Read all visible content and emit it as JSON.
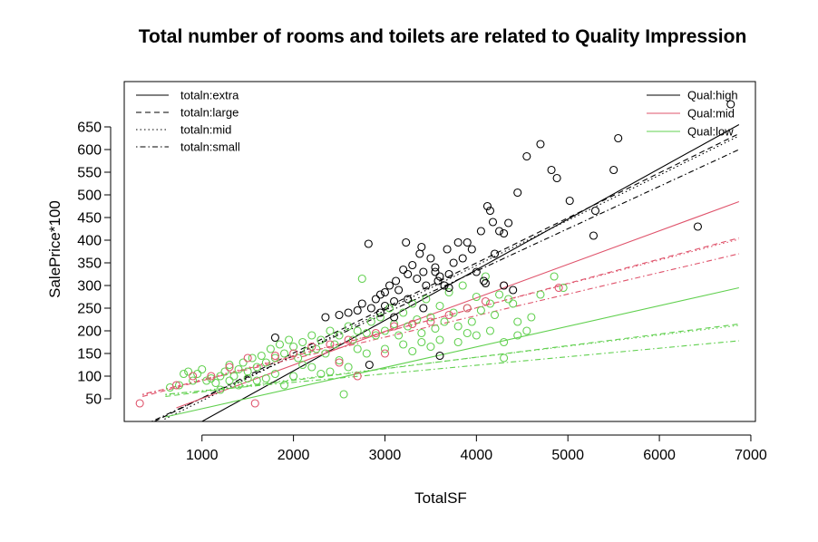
{
  "chart_data": {
    "type": "scatter",
    "title": "Total number of rooms and toilets are related to Quality Impression",
    "xlabel": "TotalSF",
    "ylabel": "SalePrice*100",
    "xlim": [
      150,
      7050
    ],
    "ylim": [
      0,
      750
    ],
    "xticks": [
      1000,
      2000,
      3000,
      4000,
      5000,
      6000,
      7000
    ],
    "yticks": [
      50,
      100,
      150,
      200,
      250,
      300,
      350,
      400,
      450,
      500,
      550,
      600,
      650
    ],
    "colors": {
      "high": "#000000",
      "mid": "#DF536B",
      "low": "#61D04F"
    },
    "legend_linetypes": {
      "position": "top-left",
      "entries": [
        {
          "label": "totaln:extra",
          "dash": "solid"
        },
        {
          "label": "totaln:large",
          "dash": "dashed"
        },
        {
          "label": "totaln:mid",
          "dash": "dotted"
        },
        {
          "label": "totaln:small",
          "dash": "dotdash"
        }
      ]
    },
    "legend_colors": {
      "position": "top-right",
      "entries": [
        {
          "label": "Qual:high",
          "color": "#000000"
        },
        {
          "label": "Qual:mid",
          "color": "#DF536B"
        },
        {
          "label": "Qual:low",
          "color": "#61D04F"
        }
      ]
    },
    "lines": [
      {
        "qual": "high",
        "totaln": "extra",
        "x": [
          1000,
          6870
        ],
        "y": [
          0,
          655
        ]
      },
      {
        "qual": "high",
        "totaln": "large",
        "x": [
          480,
          6870
        ],
        "y": [
          0,
          635
        ]
      },
      {
        "qual": "high",
        "totaln": "mid",
        "x": [
          590,
          6870
        ],
        "y": [
          5,
          630
        ]
      },
      {
        "qual": "high",
        "totaln": "small",
        "x": [
          450,
          6870
        ],
        "y": [
          0,
          600
        ]
      },
      {
        "qual": "mid",
        "totaln": "extra",
        "x": [
          720,
          6870
        ],
        "y": [
          30,
          485
        ]
      },
      {
        "qual": "mid",
        "totaln": "large",
        "x": [
          350,
          6870
        ],
        "y": [
          55,
          405
        ]
      },
      {
        "qual": "mid",
        "totaln": "mid",
        "x": [
          350,
          6870
        ],
        "y": [
          58,
          402
        ]
      },
      {
        "qual": "mid",
        "totaln": "small",
        "x": [
          350,
          6870
        ],
        "y": [
          60,
          370
        ]
      },
      {
        "qual": "low",
        "totaln": "extra",
        "x": [
          600,
          6870
        ],
        "y": [
          10,
          295
        ]
      },
      {
        "qual": "low",
        "totaln": "large",
        "x": [
          600,
          6870
        ],
        "y": [
          55,
          215
        ]
      },
      {
        "qual": "low",
        "totaln": "mid",
        "x": [
          600,
          6870
        ],
        "y": [
          58,
          212
        ]
      },
      {
        "qual": "low",
        "totaln": "small",
        "x": [
          600,
          6870
        ],
        "y": [
          60,
          178
        ]
      }
    ],
    "points_high": [
      [
        1800,
        185
      ],
      [
        2350,
        230
      ],
      [
        2500,
        235
      ],
      [
        2600,
        240
      ],
      [
        2700,
        245
      ],
      [
        2750,
        260
      ],
      [
        2820,
        392
      ],
      [
        2850,
        250
      ],
      [
        2900,
        270
      ],
      [
        2950,
        280
      ],
      [
        3000,
        285
      ],
      [
        3000,
        255
      ],
      [
        3050,
        300
      ],
      [
        3100,
        265
      ],
      [
        3120,
        310
      ],
      [
        3150,
        290
      ],
      [
        3200,
        335
      ],
      [
        3230,
        395
      ],
      [
        3250,
        325
      ],
      [
        3300,
        345
      ],
      [
        3350,
        315
      ],
      [
        3380,
        370
      ],
      [
        3400,
        385
      ],
      [
        3420,
        330
      ],
      [
        3450,
        300
      ],
      [
        3500,
        360
      ],
      [
        3550,
        340
      ],
      [
        3580,
        310
      ],
      [
        3600,
        320
      ],
      [
        3650,
        300
      ],
      [
        3680,
        380
      ],
      [
        3700,
        325
      ],
      [
        3750,
        350
      ],
      [
        3800,
        395
      ],
      [
        3850,
        360
      ],
      [
        3900,
        395
      ],
      [
        3950,
        380
      ],
      [
        4000,
        330
      ],
      [
        4050,
        420
      ],
      [
        4100,
        305
      ],
      [
        4120,
        475
      ],
      [
        4150,
        465
      ],
      [
        4180,
        440
      ],
      [
        4200,
        370
      ],
      [
        4250,
        420
      ],
      [
        4300,
        415
      ],
      [
        4350,
        438
      ],
      [
        4450,
        505
      ],
      [
        4550,
        585
      ],
      [
        4700,
        612
      ],
      [
        4820,
        555
      ],
      [
        4880,
        537
      ],
      [
        5020,
        487
      ],
      [
        5280,
        410
      ],
      [
        5300,
        465
      ],
      [
        5500,
        555
      ],
      [
        5550,
        625
      ],
      [
        6420,
        430
      ],
      [
        6780,
        700
      ],
      [
        3600,
        145
      ],
      [
        2830,
        125
      ],
      [
        4080,
        310
      ],
      [
        3250,
        270
      ],
      [
        3550,
        330
      ],
      [
        3420,
        250
      ],
      [
        3700,
        295
      ],
      [
        3100,
        230
      ],
      [
        2950,
        240
      ],
      [
        4300,
        300
      ],
      [
        4400,
        290
      ]
    ],
    "points_mid": [
      [
        320,
        40
      ],
      [
        720,
        80
      ],
      [
        900,
        100
      ],
      [
        1100,
        100
      ],
      [
        1300,
        120
      ],
      [
        1500,
        140
      ],
      [
        1580,
        40
      ],
      [
        1800,
        145
      ],
      [
        2000,
        150
      ],
      [
        2200,
        165
      ],
      [
        2400,
        170
      ],
      [
        2600,
        180
      ],
      [
        2700,
        100
      ],
      [
        2900,
        195
      ],
      [
        3100,
        210
      ],
      [
        3300,
        215
      ],
      [
        3500,
        220
      ],
      [
        3700,
        235
      ],
      [
        3900,
        250
      ],
      [
        4100,
        265
      ],
      [
        4300,
        300
      ],
      [
        4900,
        295
      ],
      [
        3000,
        150
      ],
      [
        2500,
        130
      ]
    ],
    "points_low": [
      [
        650,
        75
      ],
      [
        750,
        80
      ],
      [
        800,
        105
      ],
      [
        850,
        110
      ],
      [
        900,
        90
      ],
      [
        950,
        105
      ],
      [
        1000,
        115
      ],
      [
        1050,
        90
      ],
      [
        1100,
        95
      ],
      [
        1150,
        85
      ],
      [
        1200,
        100
      ],
      [
        1250,
        110
      ],
      [
        1300,
        125
      ],
      [
        1350,
        100
      ],
      [
        1400,
        115
      ],
      [
        1450,
        130
      ],
      [
        1500,
        110
      ],
      [
        1550,
        140
      ],
      [
        1600,
        120
      ],
      [
        1650,
        145
      ],
      [
        1700,
        130
      ],
      [
        1750,
        160
      ],
      [
        1800,
        140
      ],
      [
        1850,
        170
      ],
      [
        1900,
        150
      ],
      [
        1950,
        180
      ],
      [
        2000,
        165
      ],
      [
        2050,
        140
      ],
      [
        2100,
        175
      ],
      [
        2150,
        155
      ],
      [
        2200,
        190
      ],
      [
        2250,
        160
      ],
      [
        2300,
        180
      ],
      [
        2350,
        150
      ],
      [
        2400,
        200
      ],
      [
        2450,
        170
      ],
      [
        2500,
        190
      ],
      [
        2550,
        60
      ],
      [
        2600,
        210
      ],
      [
        2650,
        180
      ],
      [
        2700,
        200
      ],
      [
        2750,
        315
      ],
      [
        2800,
        195
      ],
      [
        2850,
        220
      ],
      [
        2900,
        190
      ],
      [
        2950,
        230
      ],
      [
        3000,
        200
      ],
      [
        3050,
        250
      ],
      [
        3100,
        215
      ],
      [
        3150,
        190
      ],
      [
        3200,
        240
      ],
      [
        3250,
        210
      ],
      [
        3300,
        260
      ],
      [
        3350,
        225
      ],
      [
        3400,
        195
      ],
      [
        3450,
        270
      ],
      [
        3500,
        230
      ],
      [
        3550,
        205
      ],
      [
        3600,
        255
      ],
      [
        3650,
        220
      ],
      [
        3700,
        285
      ],
      [
        3750,
        240
      ],
      [
        3800,
        210
      ],
      [
        3850,
        300
      ],
      [
        3900,
        250
      ],
      [
        3950,
        220
      ],
      [
        4000,
        275
      ],
      [
        4050,
        245
      ],
      [
        4100,
        320
      ],
      [
        4150,
        260
      ],
      [
        4200,
        235
      ],
      [
        4250,
        280
      ],
      [
        4300,
        175
      ],
      [
        4350,
        270
      ],
      [
        4400,
        260
      ],
      [
        4450,
        190
      ],
      [
        4550,
        200
      ],
      [
        4600,
        230
      ],
      [
        4700,
        280
      ],
      [
        4850,
        320
      ],
      [
        4950,
        295
      ],
      [
        4300,
        140
      ],
      [
        1900,
        80
      ],
      [
        2300,
        105
      ],
      [
        2600,
        120
      ],
      [
        3200,
        170
      ],
      [
        3600,
        180
      ],
      [
        1700,
        95
      ],
      [
        1200,
        70
      ],
      [
        1400,
        80
      ],
      [
        2100,
        125
      ],
      [
        2800,
        150
      ],
      [
        3300,
        155
      ],
      [
        3800,
        175
      ],
      [
        4000,
        190
      ],
      [
        2400,
        110
      ],
      [
        1600,
        90
      ],
      [
        2000,
        100
      ],
      [
        2200,
        120
      ],
      [
        3000,
        160
      ],
      [
        3500,
        165
      ],
      [
        3900,
        195
      ],
      [
        4150,
        200
      ],
      [
        4450,
        220
      ],
      [
        1300,
        90
      ],
      [
        1500,
        95
      ],
      [
        1800,
        105
      ],
      [
        2500,
        135
      ],
      [
        2700,
        160
      ],
      [
        3400,
        175
      ]
    ]
  }
}
